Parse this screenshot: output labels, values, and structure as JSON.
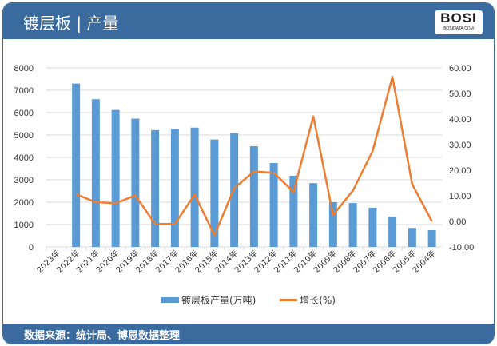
{
  "header": {
    "title": "镀层板 | 产量",
    "logo_text": "BOSI",
    "logo_sub": "BOSIDATA.COM"
  },
  "footer": {
    "source": "数据来源：统计局、博思数据整理"
  },
  "colors": {
    "bar": "#5b9bd5",
    "line": "#ed7d31",
    "header": "#3a6a9e"
  },
  "chart_data": {
    "type": "bar+line",
    "categories": [
      "2023年",
      "2022年",
      "2021年",
      "2020年",
      "2019年",
      "2018年",
      "2017年",
      "2016年",
      "2015年",
      "2014年",
      "2013年",
      "2012年",
      "2011年",
      "2010年",
      "2009年",
      "2008年",
      "2007年",
      "2006年",
      "2005年",
      "2004年"
    ],
    "series": [
      {
        "name": "镀层板产量(万吨)",
        "type": "bar",
        "axis": "left",
        "values": [
          null,
          7300,
          6600,
          6120,
          5730,
          5220,
          5260,
          5330,
          4800,
          5080,
          4500,
          3750,
          3180,
          2850,
          2000,
          1960,
          1750,
          1360,
          850,
          750
        ]
      },
      {
        "name": "增长(%)",
        "type": "line",
        "axis": "right",
        "values": [
          null,
          10.6,
          7.5,
          7.1,
          10.1,
          -1.0,
          -1.0,
          10.5,
          -5.4,
          13.0,
          19.5,
          19.0,
          11.5,
          41.0,
          2.5,
          12.0,
          27.5,
          56.5,
          14.5,
          0.0
        ]
      }
    ],
    "left_axis": {
      "ylim": [
        0,
        8000
      ],
      "ticks": [
        "0",
        "1000",
        "2000",
        "3000",
        "4000",
        "5000",
        "6000",
        "7000",
        "8000"
      ]
    },
    "right_axis": {
      "ylim": [
        -10,
        60
      ],
      "ticks": [
        "-10.00",
        "0.00",
        "10.00",
        "20.00",
        "30.00",
        "40.00",
        "50.00",
        "60.00"
      ]
    },
    "grid": true,
    "legend_position": "bottom"
  }
}
